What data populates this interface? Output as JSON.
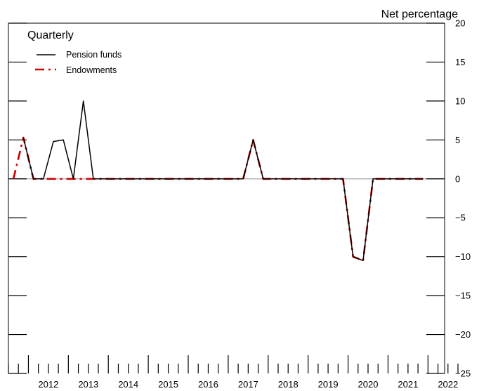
{
  "chart_data": {
    "type": "line",
    "title": "Quarterly",
    "ylabel": "Net percentage",
    "xlabel": "",
    "ylim": [
      -25,
      20
    ],
    "yticks": [
      20,
      15,
      10,
      5,
      0,
      -5,
      -10,
      -15,
      -20,
      -25
    ],
    "ytick_labels": [
      "20",
      "15",
      "10",
      "5",
      "0",
      "−5",
      "−10",
      "−15",
      "−20",
      "−25"
    ],
    "x_year_labels": [
      "2012",
      "2013",
      "2014",
      "2015",
      "2016",
      "2017",
      "2018",
      "2019",
      "2020",
      "2021",
      "2022"
    ],
    "x_range_years": [
      2011.5,
      2022.75
    ],
    "legend": {
      "placement": "top-left"
    },
    "series": [
      {
        "name": "Pension funds",
        "color": "#000000",
        "style": "solid",
        "x": [
          "2011Q4",
          "2012Q1",
          "2012Q2",
          "2012Q3",
          "2012Q4",
          "2013Q1",
          "2013Q2",
          "2013Q3",
          "2013Q4",
          "2014Q1",
          "2014Q2",
          "2014Q3",
          "2014Q4",
          "2015Q1",
          "2015Q2",
          "2015Q3",
          "2015Q4",
          "2016Q1",
          "2016Q2",
          "2016Q3",
          "2016Q4",
          "2017Q1",
          "2017Q2",
          "2017Q3",
          "2017Q4",
          "2018Q1",
          "2018Q2",
          "2018Q3",
          "2018Q4",
          "2019Q1",
          "2019Q2",
          "2019Q3",
          "2019Q4",
          "2020Q1",
          "2020Q2",
          "2020Q3",
          "2020Q4",
          "2021Q1",
          "2021Q2",
          "2021Q3",
          "2021Q4"
        ],
        "values": [
          5.3,
          0,
          0,
          4.8,
          5.0,
          0,
          10.0,
          0,
          0,
          0,
          0,
          0,
          0,
          0,
          0,
          0,
          0,
          0,
          0,
          0,
          0,
          0,
          0,
          5.0,
          0,
          0,
          0,
          0,
          0,
          0,
          0,
          0,
          0,
          -10.0,
          -10.5,
          0,
          0,
          0,
          0,
          0,
          0
        ]
      },
      {
        "name": "Endowments",
        "color": "#cc0000",
        "style": "dashed",
        "x": [
          "2011Q3",
          "2011Q4",
          "2012Q1",
          "2012Q2",
          "2012Q3",
          "2012Q4",
          "2013Q1",
          "2013Q2",
          "2013Q3",
          "2013Q4",
          "2014Q1",
          "2014Q2",
          "2014Q3",
          "2014Q4",
          "2015Q1",
          "2015Q2",
          "2015Q3",
          "2015Q4",
          "2016Q1",
          "2016Q2",
          "2016Q3",
          "2016Q4",
          "2017Q1",
          "2017Q2",
          "2017Q3",
          "2017Q4",
          "2018Q1",
          "2018Q2",
          "2018Q3",
          "2018Q4",
          "2019Q1",
          "2019Q2",
          "2019Q3",
          "2019Q4",
          "2020Q1",
          "2020Q2",
          "2020Q3",
          "2020Q4",
          "2021Q1",
          "2021Q2",
          "2021Q3",
          "2021Q4"
        ],
        "values": [
          0,
          5.3,
          0,
          0,
          0,
          0,
          0,
          0,
          0,
          0,
          0,
          0,
          0,
          0,
          0,
          0,
          0,
          0,
          0,
          0,
          0,
          0,
          0,
          0,
          5.0,
          0,
          0,
          0,
          0,
          0,
          0,
          0,
          0,
          0,
          -10.0,
          -10.5,
          0,
          0,
          0,
          0,
          0,
          0
        ]
      }
    ]
  }
}
